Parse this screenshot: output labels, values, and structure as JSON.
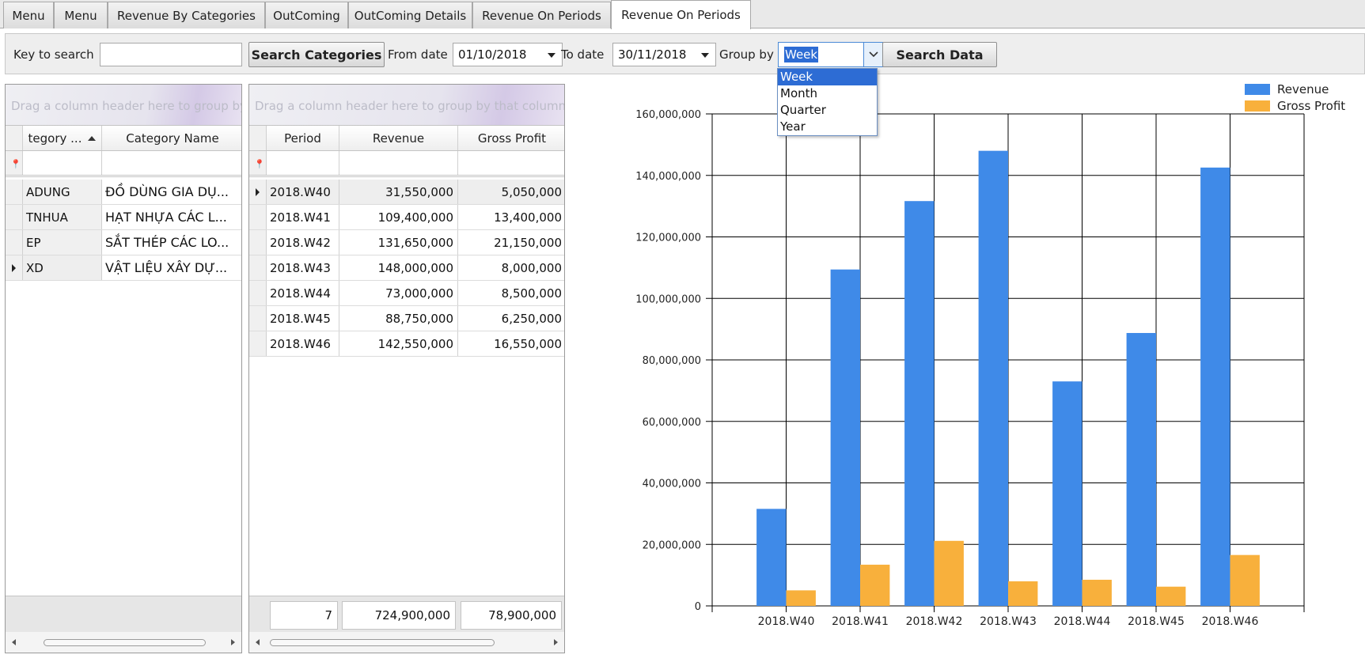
{
  "tabs": [
    {
      "label": "Menu"
    },
    {
      "label": "Menu"
    },
    {
      "label": "Revenue By Categories"
    },
    {
      "label": "OutComing"
    },
    {
      "label": "OutComing Details"
    },
    {
      "label": "Revenue On Periods"
    },
    {
      "label": "Revenue On Periods"
    }
  ],
  "toolbar": {
    "key_label": "Key to search",
    "key_value": "",
    "search_categories_label": "Search Categories",
    "from_label": "From date",
    "from_value": "01/10/2018",
    "to_label": "To date",
    "to_value": "30/11/2018",
    "groupby_label": "Group by",
    "groupby_value": "Week",
    "search_data_label": "Search Data",
    "groupby_options": [
      "Week",
      "Month",
      "Quarter",
      "Year"
    ]
  },
  "categories_grid": {
    "group_hint": "Drag a column header here to group by",
    "columns": [
      "tegory ...",
      "Category Name"
    ],
    "rows": [
      {
        "code": "ADUNG",
        "name": "ĐỒ DÙNG GIA DỤ..."
      },
      {
        "code": "TNHUA",
        "name": "HẠT NHỰA CÁC L..."
      },
      {
        "code": "EP",
        "name": "SẮT THÉP CÁC LO..."
      },
      {
        "code": "XD",
        "name": "VẬT LIỆU XÂY DỰ..."
      }
    ]
  },
  "periods_grid": {
    "group_hint": "Drag a column header here to group by that column",
    "columns": [
      "Period",
      "Revenue",
      "Gross Profit"
    ],
    "rows": [
      {
        "period": "2018.W40",
        "revenue": "31,550,000",
        "profit": "5,050,000"
      },
      {
        "period": "2018.W41",
        "revenue": "109,400,000",
        "profit": "13,400,000"
      },
      {
        "period": "2018.W42",
        "revenue": "131,650,000",
        "profit": "21,150,000"
      },
      {
        "period": "2018.W43",
        "revenue": "148,000,000",
        "profit": "8,000,000"
      },
      {
        "period": "2018.W44",
        "revenue": "73,000,000",
        "profit": "8,500,000"
      },
      {
        "period": "2018.W45",
        "revenue": "88,750,000",
        "profit": "6,250,000"
      },
      {
        "period": "2018.W46",
        "revenue": "142,550,000",
        "profit": "16,550,000"
      }
    ],
    "footer": {
      "count": "7",
      "revenue_total": "724,900,000",
      "profit_total": "78,900,000"
    }
  },
  "colors": {
    "revenue": "#3f8ae8",
    "gross_profit": "#f8b03c"
  },
  "chart_data": {
    "type": "bar",
    "categories": [
      "2018.W40",
      "2018.W41",
      "2018.W42",
      "2018.W43",
      "2018.W44",
      "2018.W45",
      "2018.W46"
    ],
    "series": [
      {
        "name": "Revenue",
        "values": [
          31550000,
          109400000,
          131650000,
          148000000,
          73000000,
          88750000,
          142550000
        ]
      },
      {
        "name": "Gross Profit",
        "values": [
          5050000,
          13400000,
          21150000,
          8000000,
          8500000,
          6250000,
          16550000
        ]
      }
    ],
    "ylim": [
      0,
      160000000
    ],
    "yticks": [
      "0",
      "20,000,000",
      "40,000,000",
      "60,000,000",
      "80,000,000",
      "100,000,000",
      "120,000,000",
      "140,000,000",
      "160,000,000"
    ],
    "grid": true,
    "legend": "top-right"
  }
}
